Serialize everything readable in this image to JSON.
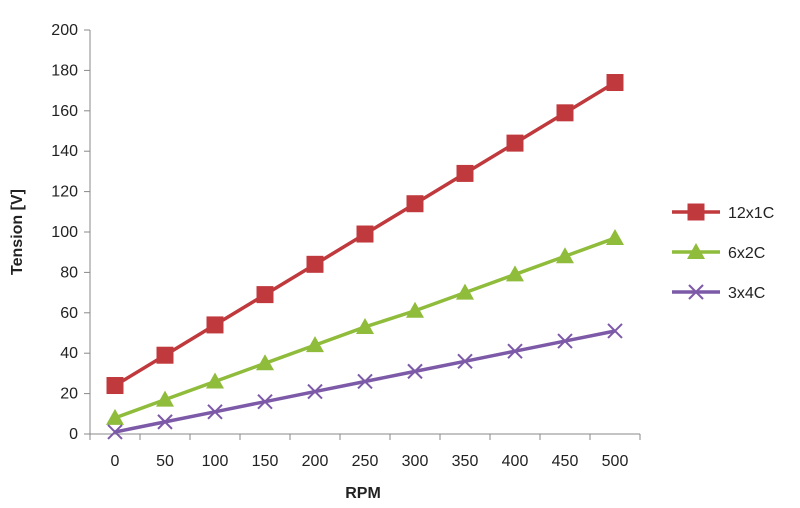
{
  "chart_data": {
    "type": "line",
    "title": "",
    "xlabel": "RPM",
    "ylabel": "Tension [V]",
    "x": [
      0,
      50,
      100,
      150,
      200,
      250,
      300,
      350,
      400,
      450,
      500
    ],
    "xlim": [
      0,
      500
    ],
    "ylim": [
      0,
      200
    ],
    "y_ticks": [
      0,
      20,
      40,
      60,
      80,
      100,
      120,
      140,
      160,
      180,
      200
    ],
    "x_ticks": [
      0,
      50,
      100,
      150,
      200,
      250,
      300,
      350,
      400,
      450,
      500
    ],
    "grid": false,
    "legend_position": "right",
    "series": [
      {
        "name": "12x1C",
        "color": "#c0393c",
        "marker": "square",
        "values": [
          24,
          39,
          54,
          69,
          84,
          99,
          114,
          129,
          144,
          159,
          174
        ]
      },
      {
        "name": "6x2C",
        "color": "#8fbc3a",
        "marker": "triangle",
        "values": [
          8,
          17,
          26,
          35,
          44,
          53,
          61,
          70,
          79,
          88,
          97
        ]
      },
      {
        "name": "3x4C",
        "color": "#7d5aa8",
        "marker": "x",
        "values": [
          1,
          6,
          11,
          16,
          21,
          26,
          31,
          36,
          41,
          46,
          51
        ]
      }
    ]
  }
}
